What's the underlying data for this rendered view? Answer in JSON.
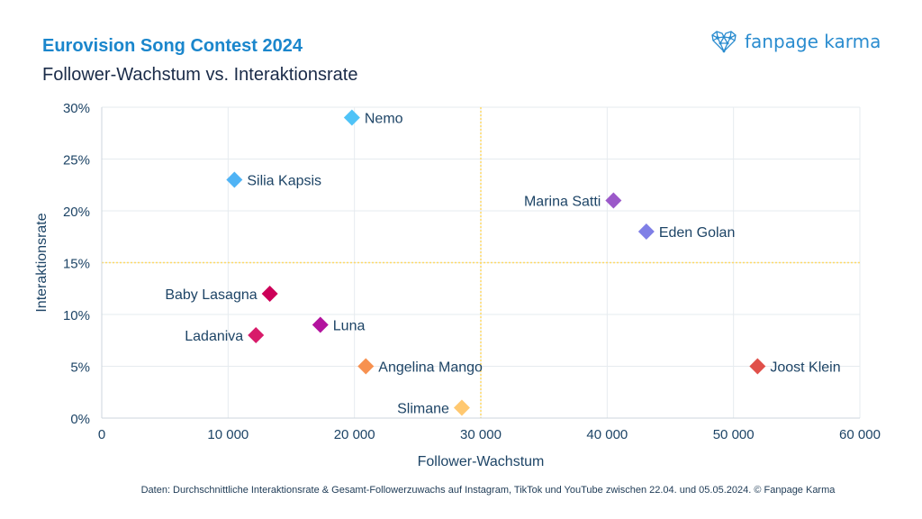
{
  "header": {
    "title": "Eurovision Song Contest 2024",
    "subtitle": "Follower-Wachstum vs. Interaktionsrate",
    "logo_text": "fanpage karma",
    "logo_icon": "network-heart-icon"
  },
  "footnote": "Daten: Durchschnittliche Interaktionsrate & Gesamt-Followerzuwachs auf Instagram, TikTok und YouTube zwischen 22.04. und 05.05.2024. © Fanpage Karma",
  "colors": {
    "title": "#1a86cc",
    "grid": "#e6ebef",
    "reference_line": "#ffd966",
    "text": "#1d4466"
  },
  "chart_data": {
    "type": "scatter",
    "title": "Follower-Wachstum vs. Interaktionsrate",
    "xlabel": "Follower-Wachstum",
    "ylabel": "Interaktionsrate",
    "xlim": [
      0,
      60000
    ],
    "ylim": [
      0,
      30
    ],
    "grid": true,
    "x_ticks": [
      0,
      10000,
      20000,
      30000,
      40000,
      50000,
      60000
    ],
    "x_tick_labels": [
      "0",
      "10 000",
      "20 000",
      "30 000",
      "40 000",
      "50 000",
      "60 000"
    ],
    "y_ticks": [
      0,
      5,
      10,
      15,
      20,
      25,
      30
    ],
    "y_tick_labels": [
      "0%",
      "5%",
      "10%",
      "15%",
      "20%",
      "25%",
      "30%"
    ],
    "reference_lines": {
      "x": 30000,
      "y": 15
    },
    "marker": "diamond",
    "points": [
      {
        "name": "Nemo",
        "x": 19800,
        "y": 29,
        "color": "#4fc3f7",
        "label_side": "right"
      },
      {
        "name": "Silia Kapsis",
        "x": 10500,
        "y": 23,
        "color": "#4fb3f5",
        "label_side": "right"
      },
      {
        "name": "Marina Satti",
        "x": 40500,
        "y": 21,
        "color": "#9b59c9",
        "label_side": "left"
      },
      {
        "name": "Eden Golan",
        "x": 43100,
        "y": 18,
        "color": "#7f7fe6",
        "label_side": "right"
      },
      {
        "name": "Baby Lasagna",
        "x": 13300,
        "y": 12,
        "color": "#cc0058",
        "label_side": "left"
      },
      {
        "name": "Luna",
        "x": 17300,
        "y": 9,
        "color": "#b3139e",
        "label_side": "right"
      },
      {
        "name": "Ladaniva",
        "x": 12200,
        "y": 8,
        "color": "#d81b6a",
        "label_side": "left"
      },
      {
        "name": "Angelina Mango",
        "x": 20900,
        "y": 5,
        "color": "#f79150",
        "label_side": "right"
      },
      {
        "name": "Joost Klein",
        "x": 51900,
        "y": 5,
        "color": "#e0504a",
        "label_side": "right"
      },
      {
        "name": "Slimane",
        "x": 28500,
        "y": 1,
        "color": "#ffc870",
        "label_side": "left"
      }
    ]
  }
}
